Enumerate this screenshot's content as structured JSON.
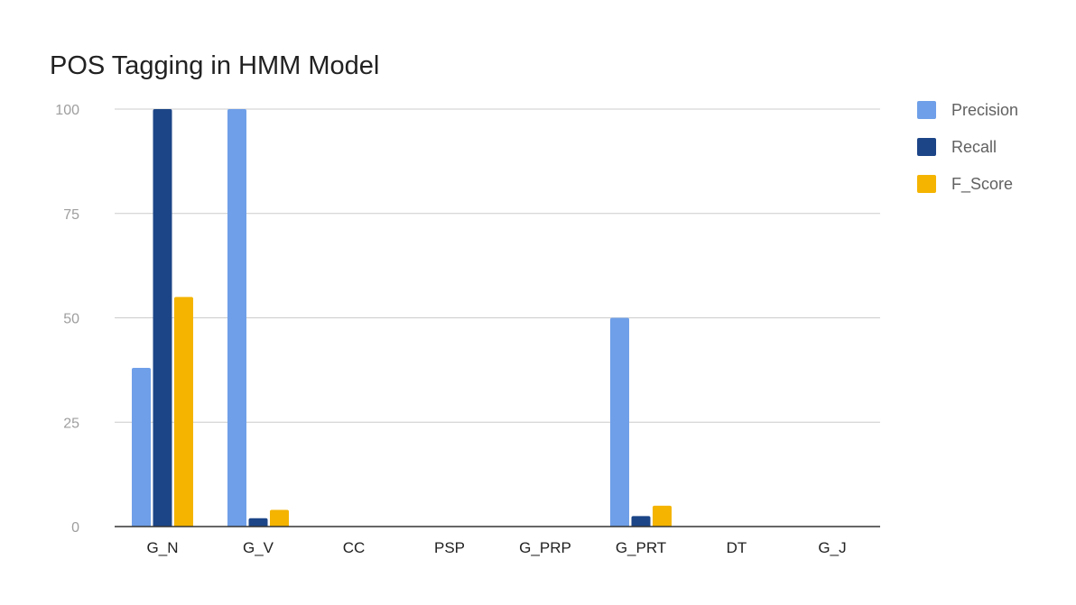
{
  "chart_data": {
    "type": "bar",
    "title": "POS Tagging in HMM Model",
    "xlabel": "",
    "ylabel": "",
    "categories": [
      "G_N",
      "G_V",
      "CC",
      "PSP",
      "G_PRP",
      "G_PRT",
      "DT",
      "G_J"
    ],
    "series": [
      {
        "name": "Precision",
        "color": "#6f9fe8",
        "values": [
          38,
          100,
          0,
          0,
          0,
          50,
          0,
          0
        ]
      },
      {
        "name": "Recall",
        "color": "#1c4587",
        "values": [
          100,
          2,
          0,
          0,
          0,
          2.5,
          0,
          0
        ]
      },
      {
        "name": "F_Score",
        "color": "#f4b400",
        "values": [
          55,
          4,
          0,
          0,
          0,
          5,
          0,
          0
        ]
      }
    ],
    "ylim": [
      0,
      100
    ],
    "yticks": [
      0,
      25,
      50,
      75,
      100
    ],
    "grid": true,
    "legend_position": "right"
  }
}
